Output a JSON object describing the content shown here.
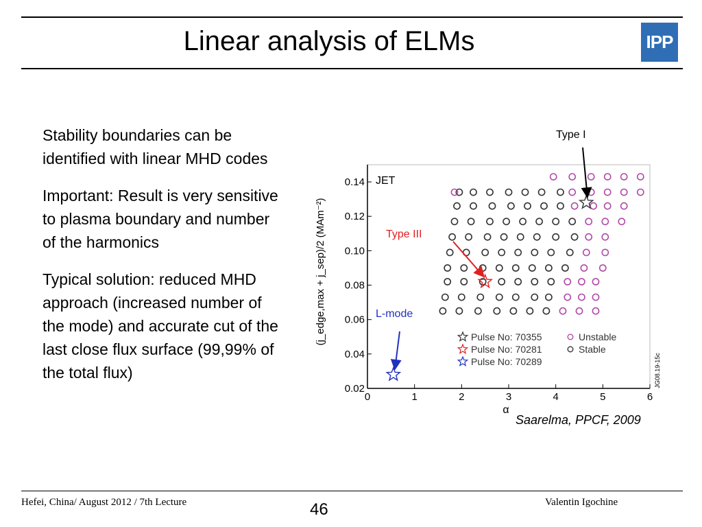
{
  "slide": {
    "title": "Linear analysis of ELMs",
    "logo_text": "IPP",
    "paragraphs": [
      "Stability boundaries can be identified with linear MHD codes",
      "Important: Result is very sensitive to plasma boundary and number of the harmonics",
      "Typical solution: reduced MHD approach (increased number of the mode) and accurate cut of the last close flux surface (99,99% of the total flux)"
    ],
    "citation": "Saarelma, PPCF, 2009",
    "footer": {
      "left": "Hefei, China/ August 2012 / 7th Lecture",
      "page_number": "46",
      "right": "Valentin Igochine"
    },
    "colors": {
      "logo": "#2f6eb5",
      "unstable": "#b04aa8",
      "stable": "#333333",
      "type1_arrow": "#000000",
      "type3": "#e02020",
      "lmode": "#2030c0"
    }
  },
  "chart_data": {
    "type": "scatter",
    "xlabel": "α",
    "ylabel": "(j_edge,max + j_sep)/2 (MAm⁻²)",
    "xlim": [
      0,
      6
    ],
    "ylim": [
      0.02,
      0.15
    ],
    "x_ticks": [
      "0",
      "1",
      "2",
      "3",
      "4",
      "5",
      "6"
    ],
    "y_ticks": [
      "0.02",
      "0.04",
      "0.06",
      "0.08",
      "0.10",
      "0.12",
      "0.14"
    ],
    "inner_label": "JET",
    "side_code": "JG08.19-15c",
    "legend": [
      {
        "marker": "star",
        "color": "#333333",
        "label": "Pulse No: 70355"
      },
      {
        "marker": "star",
        "color": "#e02020",
        "label": "Pulse No: 70281"
      },
      {
        "marker": "star",
        "color": "#2030c0",
        "label": "Pulse No: 70289"
      },
      {
        "marker": "circle",
        "color": "#b04aa8",
        "label": "Unstable"
      },
      {
        "marker": "circle",
        "color": "#333333",
        "label": "Stable"
      }
    ],
    "annotations": [
      {
        "text": "Type I",
        "color": "#000000"
      },
      {
        "text": "Type III",
        "color": "#e02020"
      },
      {
        "text": "L-mode",
        "color": "#2030c0"
      }
    ],
    "stars": [
      {
        "x": 4.65,
        "y": 0.128,
        "color": "#333333",
        "pulse": "70355"
      },
      {
        "x": 2.5,
        "y": 0.082,
        "color": "#e02020",
        "pulse": "70281"
      },
      {
        "x": 0.55,
        "y": 0.028,
        "color": "#2030c0",
        "pulse": "70289"
      }
    ],
    "series": [
      {
        "name": "Stable",
        "color": "#333333",
        "points": [
          [
            1.95,
            0.134
          ],
          [
            2.25,
            0.134
          ],
          [
            2.6,
            0.134
          ],
          [
            3.0,
            0.134
          ],
          [
            3.35,
            0.134
          ],
          [
            3.7,
            0.134
          ],
          [
            4.1,
            0.134
          ],
          [
            1.9,
            0.126
          ],
          [
            2.25,
            0.126
          ],
          [
            2.65,
            0.126
          ],
          [
            3.05,
            0.126
          ],
          [
            3.4,
            0.126
          ],
          [
            3.75,
            0.126
          ],
          [
            4.1,
            0.126
          ],
          [
            1.85,
            0.117
          ],
          [
            2.2,
            0.117
          ],
          [
            2.6,
            0.117
          ],
          [
            2.95,
            0.117
          ],
          [
            3.3,
            0.117
          ],
          [
            3.65,
            0.117
          ],
          [
            4.0,
            0.117
          ],
          [
            4.35,
            0.117
          ],
          [
            1.8,
            0.108
          ],
          [
            2.15,
            0.108
          ],
          [
            2.55,
            0.108
          ],
          [
            2.9,
            0.108
          ],
          [
            3.25,
            0.108
          ],
          [
            3.6,
            0.108
          ],
          [
            4.0,
            0.108
          ],
          [
            4.4,
            0.108
          ],
          [
            1.75,
            0.099
          ],
          [
            2.1,
            0.099
          ],
          [
            2.5,
            0.099
          ],
          [
            2.85,
            0.099
          ],
          [
            3.2,
            0.099
          ],
          [
            3.55,
            0.099
          ],
          [
            3.9,
            0.099
          ],
          [
            4.3,
            0.099
          ],
          [
            1.7,
            0.09
          ],
          [
            2.05,
            0.09
          ],
          [
            2.45,
            0.09
          ],
          [
            2.8,
            0.09
          ],
          [
            3.15,
            0.09
          ],
          [
            3.5,
            0.09
          ],
          [
            3.85,
            0.09
          ],
          [
            4.2,
            0.09
          ],
          [
            1.7,
            0.082
          ],
          [
            2.05,
            0.082
          ],
          [
            2.45,
            0.082
          ],
          [
            2.85,
            0.082
          ],
          [
            3.2,
            0.082
          ],
          [
            3.55,
            0.082
          ],
          [
            3.9,
            0.082
          ],
          [
            1.65,
            0.073
          ],
          [
            2.0,
            0.073
          ],
          [
            2.4,
            0.073
          ],
          [
            2.8,
            0.073
          ],
          [
            3.15,
            0.073
          ],
          [
            3.55,
            0.073
          ],
          [
            3.85,
            0.073
          ],
          [
            1.6,
            0.065
          ],
          [
            1.95,
            0.065
          ],
          [
            2.35,
            0.065
          ],
          [
            2.75,
            0.065
          ],
          [
            3.1,
            0.065
          ],
          [
            3.45,
            0.065
          ],
          [
            3.8,
            0.065
          ]
        ]
      },
      {
        "name": "Unstable",
        "color": "#b04aa8",
        "points": [
          [
            3.95,
            0.143
          ],
          [
            4.35,
            0.143
          ],
          [
            4.75,
            0.143
          ],
          [
            5.1,
            0.143
          ],
          [
            5.45,
            0.143
          ],
          [
            5.8,
            0.143
          ],
          [
            1.85,
            0.134
          ],
          [
            4.35,
            0.134
          ],
          [
            4.75,
            0.134
          ],
          [
            5.1,
            0.134
          ],
          [
            5.45,
            0.134
          ],
          [
            5.8,
            0.134
          ],
          [
            4.4,
            0.126
          ],
          [
            4.8,
            0.126
          ],
          [
            5.1,
            0.126
          ],
          [
            5.45,
            0.126
          ],
          [
            4.7,
            0.117
          ],
          [
            5.05,
            0.117
          ],
          [
            5.4,
            0.117
          ],
          [
            4.7,
            0.108
          ],
          [
            5.05,
            0.108
          ],
          [
            4.65,
            0.099
          ],
          [
            5.05,
            0.099
          ],
          [
            4.6,
            0.09
          ],
          [
            5.0,
            0.09
          ],
          [
            4.25,
            0.082
          ],
          [
            4.55,
            0.082
          ],
          [
            4.85,
            0.082
          ],
          [
            4.25,
            0.073
          ],
          [
            4.55,
            0.073
          ],
          [
            4.85,
            0.073
          ],
          [
            4.15,
            0.065
          ],
          [
            4.5,
            0.065
          ],
          [
            4.85,
            0.065
          ]
        ]
      }
    ]
  }
}
